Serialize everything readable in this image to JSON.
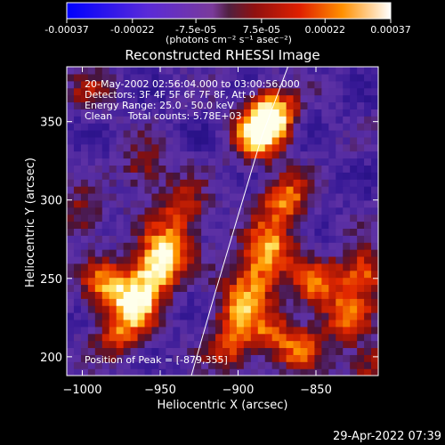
{
  "chart_data": {
    "type": "heatmap",
    "title": "Reconstructed RHESSI Image",
    "xlabel": "Heliocentric X (arcsec)",
    "ylabel": "Heliocentric Y (arcsec)",
    "xlim": [
      -1010,
      -810
    ],
    "ylim": [
      188,
      385
    ],
    "x_ticks": [
      -1000,
      -950,
      -900,
      -850
    ],
    "y_ticks": [
      200,
      250,
      300,
      350
    ],
    "colorbar": {
      "units_label": "(photons cm⁻² s⁻¹ asec⁻²)",
      "min": -0.00037,
      "max": 0.00037,
      "ticks": [
        {
          "value": -0.00037,
          "label": "-0.00037"
        },
        {
          "value": -0.00022,
          "label": "-0.00022"
        },
        {
          "value": -7.5e-05,
          "label": "-7.5e-05"
        },
        {
          "value": 7.5e-05,
          "label": "7.5e-05"
        },
        {
          "value": 0.00022,
          "label": "0.00022"
        },
        {
          "value": 0.00037,
          "label": "0.00037"
        }
      ]
    },
    "annotations": [
      "20-May-2002 02:56:04.000 to 03:00:56.000",
      "Detectors: 3F 4F 5F 6F 7F 8F, Att 0",
      "Energy Range: 25.0 - 50.0 keV",
      "Clean     Total counts: 5.78E+03"
    ],
    "peak_label": "Position of Peak = [-879,355]",
    "peak_position": [
      -879,
      355
    ],
    "limb_curve": [
      [
        -930,
        188
      ],
      [
        -915,
        240
      ],
      [
        -900,
        290
      ],
      [
        -885,
        340
      ],
      [
        -868,
        385
      ]
    ],
    "bright_regions": [
      {
        "x": -879,
        "y": 355,
        "amplitude": 1.0
      },
      {
        "x": -888,
        "y": 340,
        "amplitude": 0.75
      },
      {
        "x": -870,
        "y": 300,
        "amplitude": 0.7
      },
      {
        "x": -880,
        "y": 270,
        "amplitude": 0.75
      },
      {
        "x": -890,
        "y": 250,
        "amplitude": 0.6
      },
      {
        "x": -900,
        "y": 230,
        "amplitude": 0.55
      },
      {
        "x": -905,
        "y": 205,
        "amplitude": 0.5
      },
      {
        "x": -880,
        "y": 215,
        "amplitude": 0.45
      },
      {
        "x": -850,
        "y": 245,
        "amplitude": 0.6
      },
      {
        "x": -820,
        "y": 255,
        "amplitude": 0.7
      },
      {
        "x": -830,
        "y": 225,
        "amplitude": 0.55
      },
      {
        "x": -955,
        "y": 255,
        "amplitude": 0.8
      },
      {
        "x": -945,
        "y": 270,
        "amplitude": 0.7
      },
      {
        "x": -965,
        "y": 235,
        "amplitude": 0.7
      },
      {
        "x": -975,
        "y": 215,
        "amplitude": 0.55
      },
      {
        "x": -985,
        "y": 245,
        "amplitude": 0.65
      },
      {
        "x": -935,
        "y": 295,
        "amplitude": 0.5
      },
      {
        "x": -960,
        "y": 320,
        "amplitude": 0.4
      },
      {
        "x": -995,
        "y": 370,
        "amplitude": 0.3
      },
      {
        "x": -1000,
        "y": 290,
        "amplitude": 0.4
      },
      {
        "x": -860,
        "y": 205,
        "amplitude": 0.5
      },
      {
        "x": -815,
        "y": 195,
        "amplitude": 0.45
      }
    ]
  },
  "footer": {
    "timestamp": "29-Apr-2022 07:39"
  }
}
